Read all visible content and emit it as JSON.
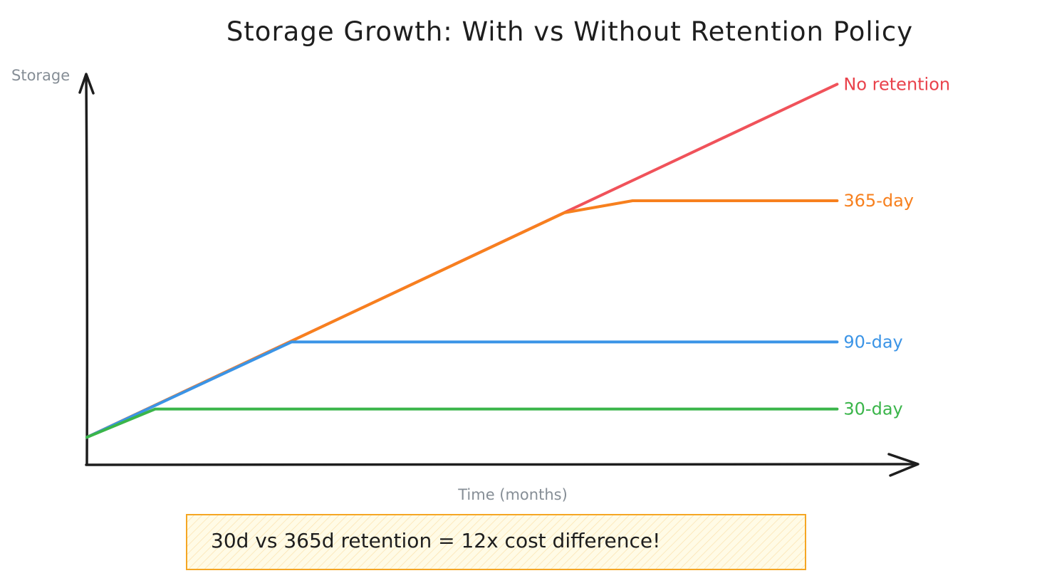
{
  "chart_data": {
    "type": "line",
    "title": "Storage Growth: With vs Without Retention Policy",
    "xlabel": "Time (months)",
    "ylabel": "Storage",
    "grid": false,
    "legend": "inline-right",
    "xlim": [
      0,
      12
    ],
    "ylim": [
      0,
      11
    ],
    "series": [
      {
        "name": "No retention",
        "color": "#e03131",
        "line_color": "#f0525a",
        "label_color": "#e9424b",
        "x": [
          0,
          11
        ],
        "y": [
          0.8,
          10.8
        ]
      },
      {
        "name": "365-day",
        "color": "#f08c00",
        "line_color": "#f7801e",
        "label_color": "#f7801e",
        "x": [
          0,
          7,
          8,
          11
        ],
        "y": [
          0.8,
          7.16,
          7.5,
          7.5
        ]
      },
      {
        "name": "90-day",
        "color": "#1c7ed6",
        "line_color": "#3b94e6",
        "label_color": "#3b94e6",
        "x": [
          0,
          3,
          11
        ],
        "y": [
          0.8,
          3.5,
          3.5
        ]
      },
      {
        "name": "30-day",
        "color": "#2f9e44",
        "line_color": "#3ab54a",
        "label_color": "#3ab54a",
        "x": [
          0,
          1,
          11
        ],
        "y": [
          0.8,
          1.6,
          1.6
        ]
      }
    ]
  },
  "callout": {
    "text": "30d vs 365d retention = 12x cost difference!",
    "border_color": "#f5a623",
    "fill_color": "#fffbe6"
  }
}
